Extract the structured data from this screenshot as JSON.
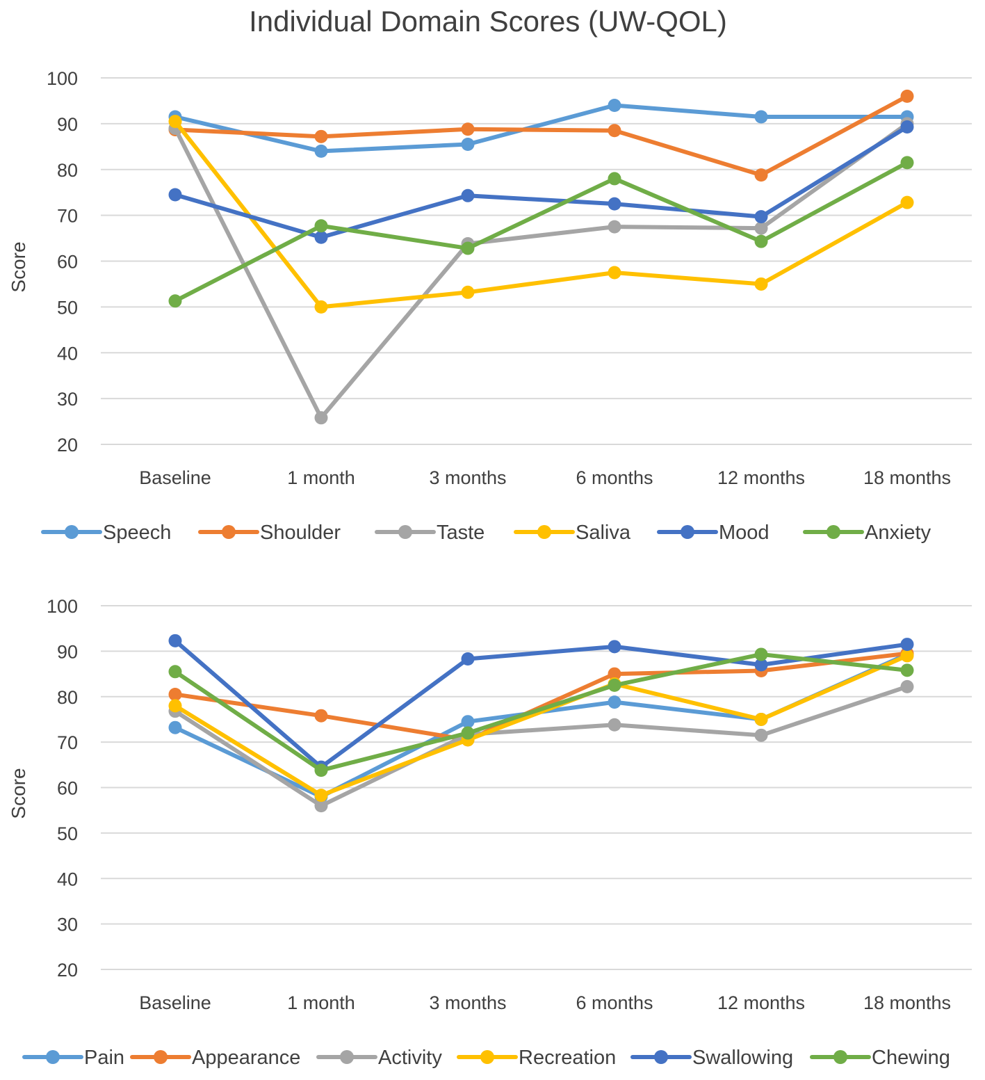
{
  "title": "Individual Domain Scores (UW-QOL)",
  "chart_data": [
    {
      "type": "line",
      "title": "Individual Domain Scores (UW-QOL)",
      "xlabel": "",
      "ylabel": "Score",
      "ylim": [
        20,
        100
      ],
      "yticks": [
        20,
        30,
        40,
        50,
        60,
        70,
        80,
        90,
        100
      ],
      "grid": true,
      "legend": "bottom",
      "categories": [
        "Baseline",
        "1 month",
        "3 months",
        "6 months",
        "12 months",
        "18 months"
      ],
      "series": [
        {
          "name": "Speech",
          "color": "#5B9BD5",
          "values": [
            91.5,
            84,
            85.5,
            94,
            91.5,
            91.5
          ]
        },
        {
          "name": "Shoulder",
          "color": "#ED7D31",
          "values": [
            88.7,
            87.2,
            88.8,
            88.5,
            78.8,
            96
          ]
        },
        {
          "name": "Taste",
          "color": "#A5A5A5",
          "values": [
            89,
            25.8,
            63.8,
            67.5,
            67.2,
            90
          ]
        },
        {
          "name": "Saliva",
          "color": "#FFC000",
          "values": [
            90.5,
            50,
            53.2,
            57.5,
            55,
            72.8
          ]
        },
        {
          "name": "Mood",
          "color": "#4472C4",
          "values": [
            74.5,
            65.2,
            74.3,
            72.5,
            69.7,
            89.3
          ]
        },
        {
          "name": "Anxiety",
          "color": "#70AD47",
          "values": [
            51.3,
            67.7,
            62.8,
            78,
            64.3,
            81.5
          ]
        }
      ]
    },
    {
      "type": "line",
      "title": "",
      "xlabel": "",
      "ylabel": "Score",
      "ylim": [
        20,
        100
      ],
      "yticks": [
        20,
        30,
        40,
        50,
        60,
        70,
        80,
        90,
        100
      ],
      "grid": true,
      "legend": "bottom",
      "categories": [
        "Baseline",
        "1 month",
        "3 months",
        "6 months",
        "12 months",
        "18 months"
      ],
      "series": [
        {
          "name": "Pain",
          "color": "#5B9BD5",
          "values": [
            73.2,
            58,
            74.5,
            78.8,
            75,
            89.3
          ]
        },
        {
          "name": "Appearance",
          "color": "#ED7D31",
          "values": [
            80.5,
            75.8,
            70.5,
            85,
            85.7,
            89.5
          ]
        },
        {
          "name": "Activity",
          "color": "#A5A5A5",
          "values": [
            76.8,
            56,
            71.7,
            73.8,
            71.5,
            82.2
          ]
        },
        {
          "name": "Recreation",
          "color": "#FFC000",
          "values": [
            78,
            58.3,
            70.5,
            82.8,
            75,
            89
          ]
        },
        {
          "name": "Swallowing",
          "color": "#4472C4",
          "values": [
            92.3,
            64.5,
            88.3,
            91,
            87,
            91.5
          ]
        },
        {
          "name": "Chewing",
          "color": "#70AD47",
          "values": [
            85.5,
            63.8,
            72,
            82.5,
            89.3,
            85.8
          ]
        }
      ]
    }
  ]
}
